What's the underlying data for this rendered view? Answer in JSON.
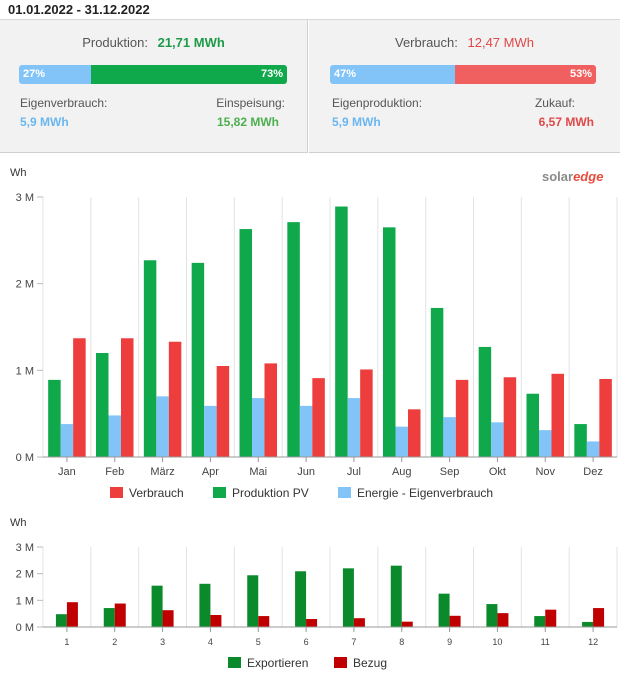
{
  "header": {
    "date_range": "01.01.2022 - 31.12.2022"
  },
  "production": {
    "title": "Produktion:",
    "total": "21,71 MWh",
    "self_pct": "27%",
    "self_frac": 0.27,
    "export_pct": "73%",
    "self_label": "Eigenverbrauch:",
    "self_value": "5,9 MWh",
    "export_label": "Einspeisung:",
    "export_value": "15,82 MWh"
  },
  "consumption": {
    "title": "Verbrauch:",
    "total": "12,47 MWh",
    "self_pct": "47%",
    "self_frac": 0.47,
    "import_pct": "53%",
    "self_label": "Eigenproduktion:",
    "self_value": "5,9 MWh",
    "import_label": "Zukauf:",
    "import_value": "6,57 MWh"
  },
  "brand": {
    "part1": "solar",
    "part2": "edge"
  },
  "colors": {
    "light_blue": "#82c4f8",
    "green": "#0fa84a",
    "red": "#ee3d3d",
    "bar_red_bar": "#f06060",
    "dark_green": "#0a8a2a",
    "dark_red": "#c00000",
    "green_text": "#4caf50",
    "red_text": "#e04848",
    "blue_text": "#6ab7f0"
  },
  "chart_data": [
    {
      "type": "bar",
      "ylabel": "Wh",
      "ylim": [
        0,
        3000000
      ],
      "yticks": [
        {
          "value": 0,
          "label": "0 M"
        },
        {
          "value": 1000000,
          "label": "1 M"
        },
        {
          "value": 2000000,
          "label": "2 M"
        },
        {
          "value": 3000000,
          "label": "3 M"
        }
      ],
      "categories": [
        "Jan",
        "Feb",
        "März",
        "Apr",
        "Mai",
        "Jun",
        "Jul",
        "Aug",
        "Sep",
        "Okt",
        "Nov",
        "Dez"
      ],
      "series": [
        {
          "name": "Verbrauch",
          "color": "#ee3d3d",
          "values": [
            1370000,
            1370000,
            1330000,
            1050000,
            1080000,
            910000,
            1010000,
            550000,
            890000,
            920000,
            960000,
            900000
          ]
        },
        {
          "name": "Produktion PV",
          "color": "#0fa84a",
          "values": [
            890000,
            1200000,
            2270000,
            2240000,
            2630000,
            2710000,
            2890000,
            2650000,
            1720000,
            1270000,
            730000,
            380000
          ]
        },
        {
          "name": "Energie - Eigenverbrauch",
          "color": "#82c4f8",
          "values": [
            380000,
            480000,
            700000,
            590000,
            680000,
            590000,
            680000,
            350000,
            460000,
            400000,
            310000,
            180000
          ]
        }
      ],
      "draw_order": [
        1,
        2,
        0
      ],
      "legend": "bottom",
      "grid": "vertical"
    },
    {
      "type": "bar",
      "ylabel": "Wh",
      "ylim": [
        0,
        3000000
      ],
      "yticks": [
        {
          "value": 0,
          "label": "0 M"
        },
        {
          "value": 1000000,
          "label": "1 M"
        },
        {
          "value": 2000000,
          "label": "2 M"
        },
        {
          "value": 3000000,
          "label": "3 M"
        }
      ],
      "categories": [
        "1",
        "2",
        "3",
        "4",
        "5",
        "6",
        "7",
        "8",
        "9",
        "10",
        "11",
        "12"
      ],
      "series": [
        {
          "name": "Exportieren",
          "color": "#0a8a2a",
          "values": [
            480000,
            710000,
            1550000,
            1620000,
            1940000,
            2090000,
            2200000,
            2300000,
            1250000,
            860000,
            410000,
            190000
          ]
        },
        {
          "name": "Bezug",
          "color": "#c00000",
          "values": [
            930000,
            880000,
            630000,
            450000,
            410000,
            300000,
            330000,
            200000,
            420000,
            520000,
            650000,
            710000
          ]
        }
      ],
      "legend": "bottom",
      "grid": "vertical"
    }
  ]
}
